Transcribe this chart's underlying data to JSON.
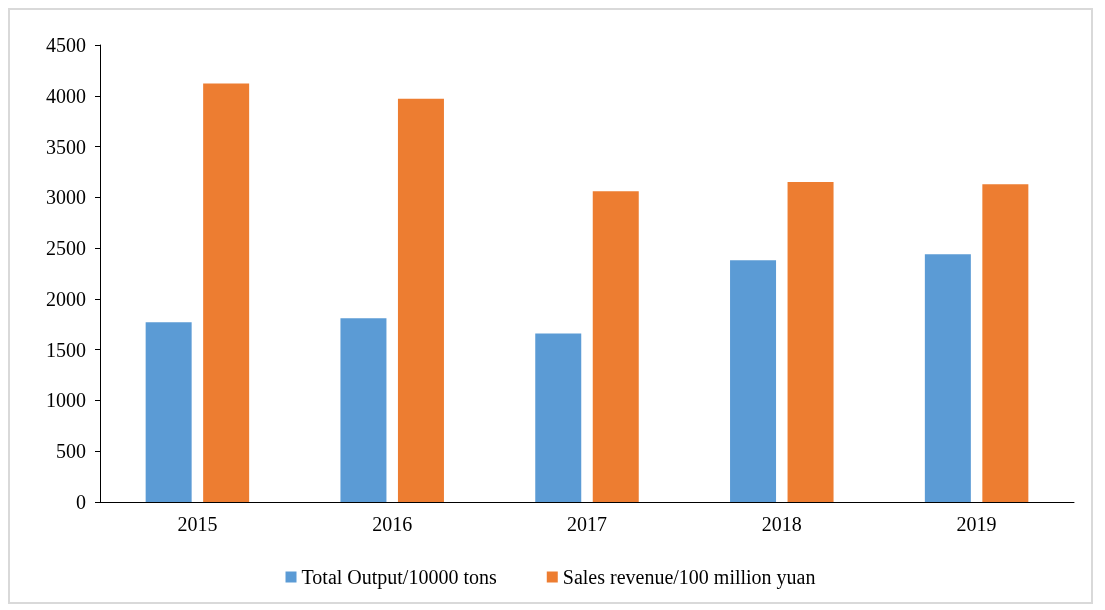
{
  "chart_data": {
    "type": "bar",
    "categories": [
      "2015",
      "2016",
      "2017",
      "2018",
      "2019"
    ],
    "series": [
      {
        "name": "Total Output/10000 tons",
        "color": "#5b9bd5",
        "values": [
          1770,
          1810,
          1660,
          2380,
          2440
        ]
      },
      {
        "name": "Sales revenue/100 million yuan",
        "color": "#ed7d31",
        "values": [
          4120,
          3970,
          3060,
          3150,
          3130
        ]
      }
    ],
    "ylim": [
      0,
      4500
    ],
    "yticks": [
      0,
      500,
      1000,
      1500,
      2000,
      2500,
      3000,
      3500,
      4000,
      4500
    ],
    "grid": false,
    "legend": "bottom"
  }
}
